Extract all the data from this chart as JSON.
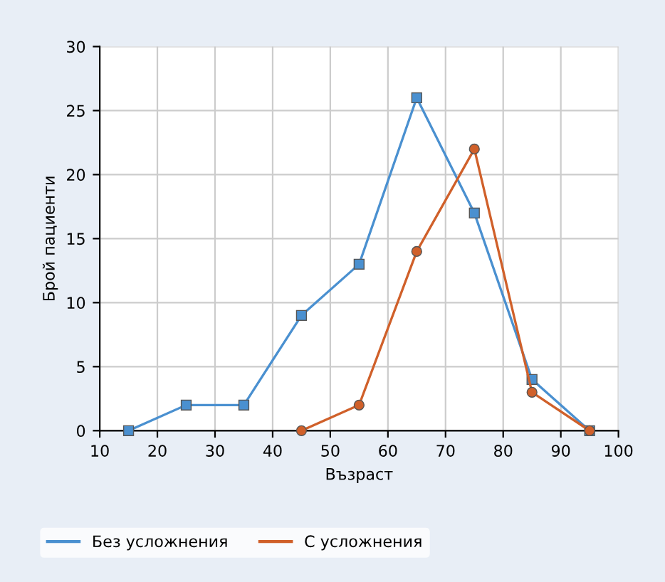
{
  "chart_data": {
    "type": "line",
    "xlabel": "Възраст",
    "ylabel": "Брой пациенти",
    "xlim": [
      10,
      100
    ],
    "xticks": [
      10,
      20,
      30,
      40,
      50,
      60,
      70,
      80,
      90,
      100
    ],
    "ylim": [
      0,
      30
    ],
    "yticks": [
      0,
      5,
      10,
      15,
      20,
      25,
      30
    ],
    "grid": true,
    "legend": "bottom",
    "series": [
      {
        "name": "Без усложнения",
        "color": "#4a90d0",
        "marker": "square",
        "x": [
          15,
          25,
          35,
          45,
          55,
          65,
          75,
          85,
          95
        ],
        "values": [
          0,
          2,
          2,
          9,
          13,
          26,
          17,
          4,
          0
        ]
      },
      {
        "name": "С усложнения",
        "color": "#d0602a",
        "marker": "circle",
        "x": [
          45,
          55,
          65,
          75,
          85,
          95
        ],
        "values": [
          0,
          2,
          14,
          22,
          3,
          0
        ]
      }
    ]
  }
}
